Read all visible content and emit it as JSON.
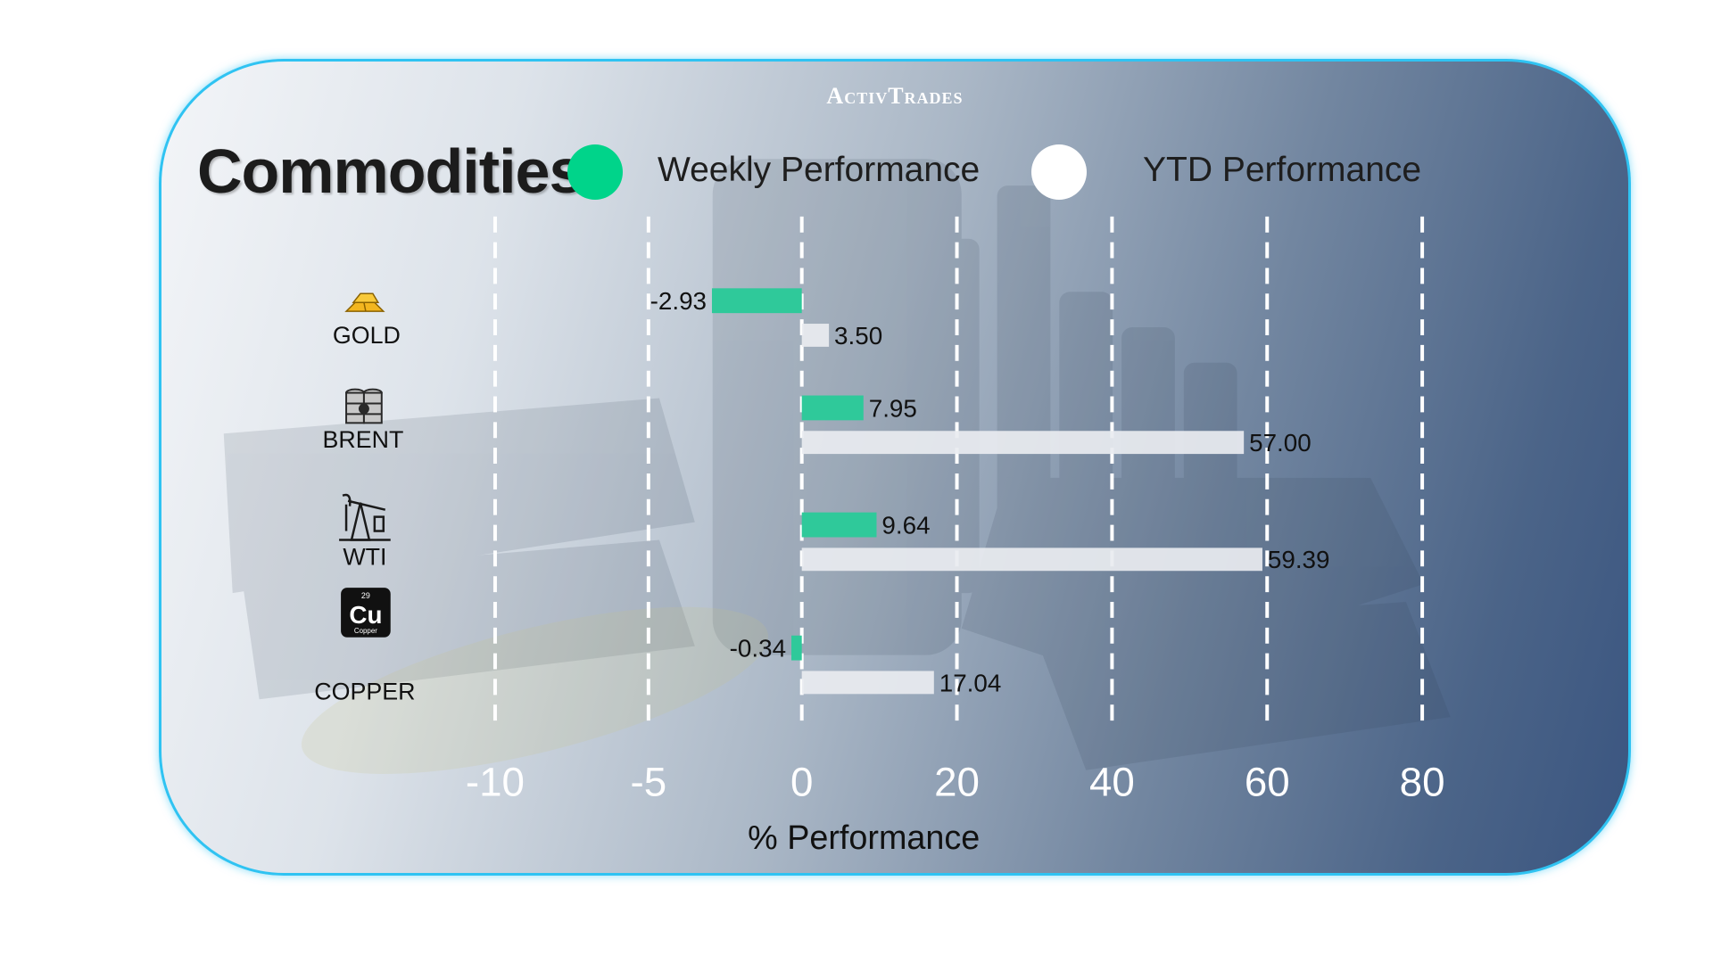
{
  "brand": "ActivTrades",
  "title": "Commodities",
  "legend": [
    {
      "label": "Weekly Performance",
      "color": "#00d48a"
    },
    {
      "label": "YTD Performance",
      "color": "#ffffff"
    }
  ],
  "colors": {
    "weekly_bar": "#2fc99a",
    "ytd_bar": "#e9ecf0",
    "card_border": "#2fc3f2",
    "gridline": "#ffffff"
  },
  "chart_data": {
    "type": "bar",
    "orientation": "horizontal",
    "categories": [
      {
        "label": "GOLD",
        "icon": "gold-bars-icon"
      },
      {
        "label": "BRENT",
        "icon": "oil-barrels-icon"
      },
      {
        "label": "WTI",
        "icon": "oil-pump-icon"
      },
      {
        "label": "COPPER",
        "icon": "copper-element-icon"
      }
    ],
    "series": [
      {
        "name": "Weekly Performance",
        "values": [
          -2.93,
          7.95,
          9.64,
          -0.34
        ],
        "labels": [
          "-2.93",
          "7.95",
          "9.64",
          "-0.34"
        ]
      },
      {
        "name": "YTD Performance",
        "values": [
          3.5,
          57.0,
          59.39,
          17.04
        ],
        "labels": [
          "3.50",
          "57.00",
          "59.39",
          "17.04"
        ]
      }
    ],
    "xlabel": "% Performance",
    "xticks": [
      "-10",
      "-5",
      "0",
      "20",
      "40",
      "60",
      "80"
    ],
    "tick_values": [
      -10,
      -5,
      0,
      20,
      40,
      60,
      80
    ],
    "xscale": "piecewise-linear (1 unit per step below 0, 20 units per step above 0)",
    "grid": true,
    "legend_position": "top"
  }
}
